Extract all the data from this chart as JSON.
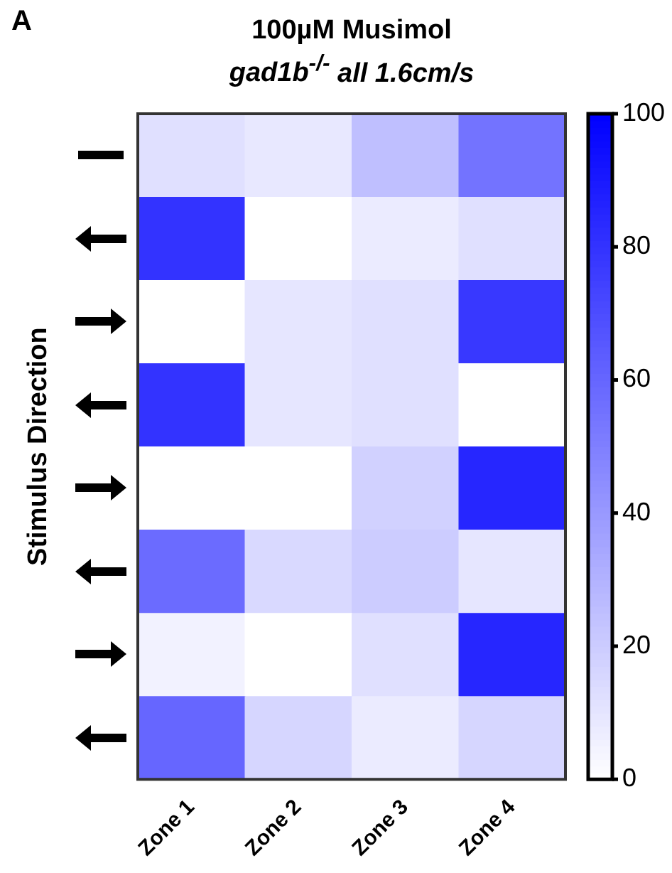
{
  "chart_data": {
    "type": "heatmap",
    "title": "100µM Musimol",
    "subtitle": "gad1b$^{-/-}$ all 1.6cm/s",
    "ylabel": "Stimulus Direction",
    "annotations": [
      "A"
    ],
    "categories": [
      "Zone 1",
      "Zone 2",
      "Zone 3",
      "Zone 4"
    ],
    "y_categories": [
      null,
      null,
      null,
      null,
      null,
      null,
      null,
      null
    ],
    "cells": [
      [
        12,
        9,
        25,
        55
      ],
      [
        80,
        0,
        8,
        12
      ],
      [
        0,
        10,
        12,
        78
      ],
      [
        80,
        10,
        12,
        0
      ],
      [
        0,
        0,
        18,
        85
      ],
      [
        58,
        15,
        20,
        10
      ],
      [
        5,
        0,
        12,
        85
      ],
      [
        60,
        16,
        8,
        16
      ]
    ],
    "clim": [
      0,
      100
    ],
    "cticks": [
      0,
      20,
      40,
      60,
      80,
      100
    ]
  }
}
